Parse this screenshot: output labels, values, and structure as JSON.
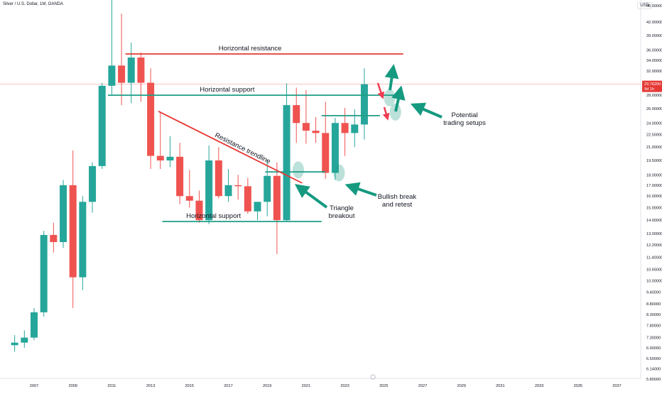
{
  "header": {
    "title": "Silver / U.S. Dollar, 1M, OANDA",
    "currency": "USD"
  },
  "price_tag": {
    "price": "29.76200",
    "countdown": "9d 1h"
  },
  "colors": {
    "up": "#26a69a",
    "down": "#ef5350",
    "resistance": "#e53935",
    "support": "#1e9d86",
    "arrow_green": "#159a80",
    "arrow_red": "#f03c52",
    "price_line": "#f7b2b2",
    "axis_text": "#131722"
  },
  "chart_data": {
    "type": "candlestick",
    "x_axis_years": [
      "2007",
      "2009",
      "2011",
      "2013",
      "2015",
      "2017",
      "2019",
      "2021",
      "2023",
      "2025",
      "2027",
      "2029",
      "2031",
      "2033",
      "2035",
      "2037"
    ],
    "y_axis_ticks": [
      "46.00000",
      "42.00000",
      "39.00000",
      "36.00000",
      "34.00000",
      "32.00000",
      "30.00000",
      "28.00000",
      "26.00000",
      "24.00000",
      "22.50000",
      "21.00000",
      "19.50000",
      "18.00000",
      "17.00000",
      "16.00000",
      "15.00000",
      "14.00000",
      "13.00000",
      "12.20000",
      "11.40000",
      "10.65000",
      "10.00000",
      "9.40000",
      "8.80000",
      "8.30000",
      "7.80000",
      "7.30000",
      "6.90000",
      "6.50000",
      "6.14000",
      "5.80000"
    ],
    "y_scale": "log",
    "price_line": 29.762,
    "levels": [
      {
        "label": "Horizontal resistance",
        "price": 35.2,
        "from": 2011.7,
        "to": 2026.0,
        "kind": "resistance"
      },
      {
        "label": "Horizontal support",
        "price": 28.0,
        "from": 2010.8,
        "to": 2026.0,
        "kind": "support"
      },
      {
        "label": "Horizontal support",
        "price": 13.9,
        "from": 2013.6,
        "to": 2021.8,
        "kind": "support"
      },
      {
        "label": "",
        "price": 18.3,
        "from": 2018.9,
        "to": 2022.0,
        "kind": "support"
      },
      {
        "label": "",
        "price": 25.0,
        "from": 2021.8,
        "to": 2024.8,
        "kind": "support"
      }
    ],
    "trendline": {
      "label": "Resistance trendline",
      "from": [
        2013.4,
        25.6
      ],
      "to": [
        2020.8,
        17.2
      ]
    },
    "annotations": [
      "Triangle breakout",
      "Bullish break and retest",
      "Potential trading setups"
    ],
    "candles": [
      {
        "t": 2006.0,
        "o": 7.0,
        "h": 7.4,
        "l": 6.75,
        "c": 7.1
      },
      {
        "t": 2006.5,
        "o": 7.1,
        "h": 7.6,
        "l": 6.9,
        "c": 7.3
      },
      {
        "t": 2007.0,
        "o": 7.3,
        "h": 8.6,
        "l": 7.2,
        "c": 8.4
      },
      {
        "t": 2007.5,
        "o": 8.4,
        "h": 13.2,
        "l": 8.2,
        "c": 12.9
      },
      {
        "t": 2008.0,
        "o": 12.9,
        "h": 13.8,
        "l": 11.7,
        "c": 12.4
      },
      {
        "t": 2008.5,
        "o": 12.4,
        "h": 17.5,
        "l": 12.0,
        "c": 17.0
      },
      {
        "t": 2009.0,
        "o": 17.0,
        "h": 20.6,
        "l": 8.6,
        "c": 10.2
      },
      {
        "t": 2009.5,
        "o": 10.2,
        "h": 16.0,
        "l": 9.5,
        "c": 15.5
      },
      {
        "t": 2010.0,
        "o": 15.5,
        "h": 19.3,
        "l": 14.6,
        "c": 18.9
      },
      {
        "t": 2010.5,
        "o": 18.9,
        "h": 30.0,
        "l": 18.6,
        "c": 29.5
      },
      {
        "t": 2011.0,
        "o": 29.5,
        "h": 48.7,
        "l": 28.0,
        "c": 33.0
      },
      {
        "t": 2011.5,
        "o": 33.0,
        "h": 44.0,
        "l": 26.5,
        "c": 30.0
      },
      {
        "t": 2012.0,
        "o": 30.0,
        "h": 37.5,
        "l": 26.8,
        "c": 34.5
      },
      {
        "t": 2012.5,
        "o": 34.5,
        "h": 35.5,
        "l": 27.0,
        "c": 30.0
      },
      {
        "t": 2013.0,
        "o": 30.0,
        "h": 32.5,
        "l": 18.6,
        "c": 20.0
      },
      {
        "t": 2013.5,
        "o": 20.0,
        "h": 25.5,
        "l": 18.6,
        "c": 19.5
      },
      {
        "t": 2014.0,
        "o": 19.5,
        "h": 22.3,
        "l": 18.8,
        "c": 19.9
      },
      {
        "t": 2014.5,
        "o": 19.9,
        "h": 21.5,
        "l": 15.3,
        "c": 16.0
      },
      {
        "t": 2015.0,
        "o": 16.0,
        "h": 18.5,
        "l": 15.0,
        "c": 15.6
      },
      {
        "t": 2015.5,
        "o": 15.6,
        "h": 16.5,
        "l": 13.8,
        "c": 14.0
      },
      {
        "t": 2016.0,
        "o": 14.0,
        "h": 21.2,
        "l": 13.7,
        "c": 19.5
      },
      {
        "t": 2016.5,
        "o": 19.5,
        "h": 21.0,
        "l": 15.8,
        "c": 16.0
      },
      {
        "t": 2017.0,
        "o": 16.0,
        "h": 18.6,
        "l": 15.5,
        "c": 17.0
      },
      {
        "t": 2017.5,
        "o": 17.0,
        "h": 18.0,
        "l": 15.7,
        "c": 16.9
      },
      {
        "t": 2018.0,
        "o": 16.9,
        "h": 17.7,
        "l": 14.5,
        "c": 14.7
      },
      {
        "t": 2018.5,
        "o": 14.7,
        "h": 15.2,
        "l": 14.0,
        "c": 15.5
      },
      {
        "t": 2019.0,
        "o": 15.5,
        "h": 19.6,
        "l": 14.3,
        "c": 17.9
      },
      {
        "t": 2019.5,
        "o": 17.9,
        "h": 19.3,
        "l": 11.6,
        "c": 14.0
      },
      {
        "t": 2020.0,
        "o": 14.0,
        "h": 29.9,
        "l": 13.9,
        "c": 26.5
      },
      {
        "t": 2020.5,
        "o": 26.5,
        "h": 29.2,
        "l": 21.5,
        "c": 24.0
      },
      {
        "t": 2021.0,
        "o": 24.0,
        "h": 28.8,
        "l": 21.4,
        "c": 23.0
      },
      {
        "t": 2021.5,
        "o": 23.0,
        "h": 24.8,
        "l": 21.5,
        "c": 22.7
      },
      {
        "t": 2022.0,
        "o": 22.7,
        "h": 27.0,
        "l": 17.6,
        "c": 18.2
      },
      {
        "t": 2022.5,
        "o": 18.2,
        "h": 24.7,
        "l": 17.5,
        "c": 24.0
      },
      {
        "t": 2023.0,
        "o": 24.0,
        "h": 26.1,
        "l": 20.0,
        "c": 22.7
      },
      {
        "t": 2023.5,
        "o": 22.7,
        "h": 25.9,
        "l": 21.0,
        "c": 23.8
      },
      {
        "t": 2024.0,
        "o": 23.8,
        "h": 32.5,
        "l": 21.9,
        "c": 29.762
      }
    ]
  }
}
